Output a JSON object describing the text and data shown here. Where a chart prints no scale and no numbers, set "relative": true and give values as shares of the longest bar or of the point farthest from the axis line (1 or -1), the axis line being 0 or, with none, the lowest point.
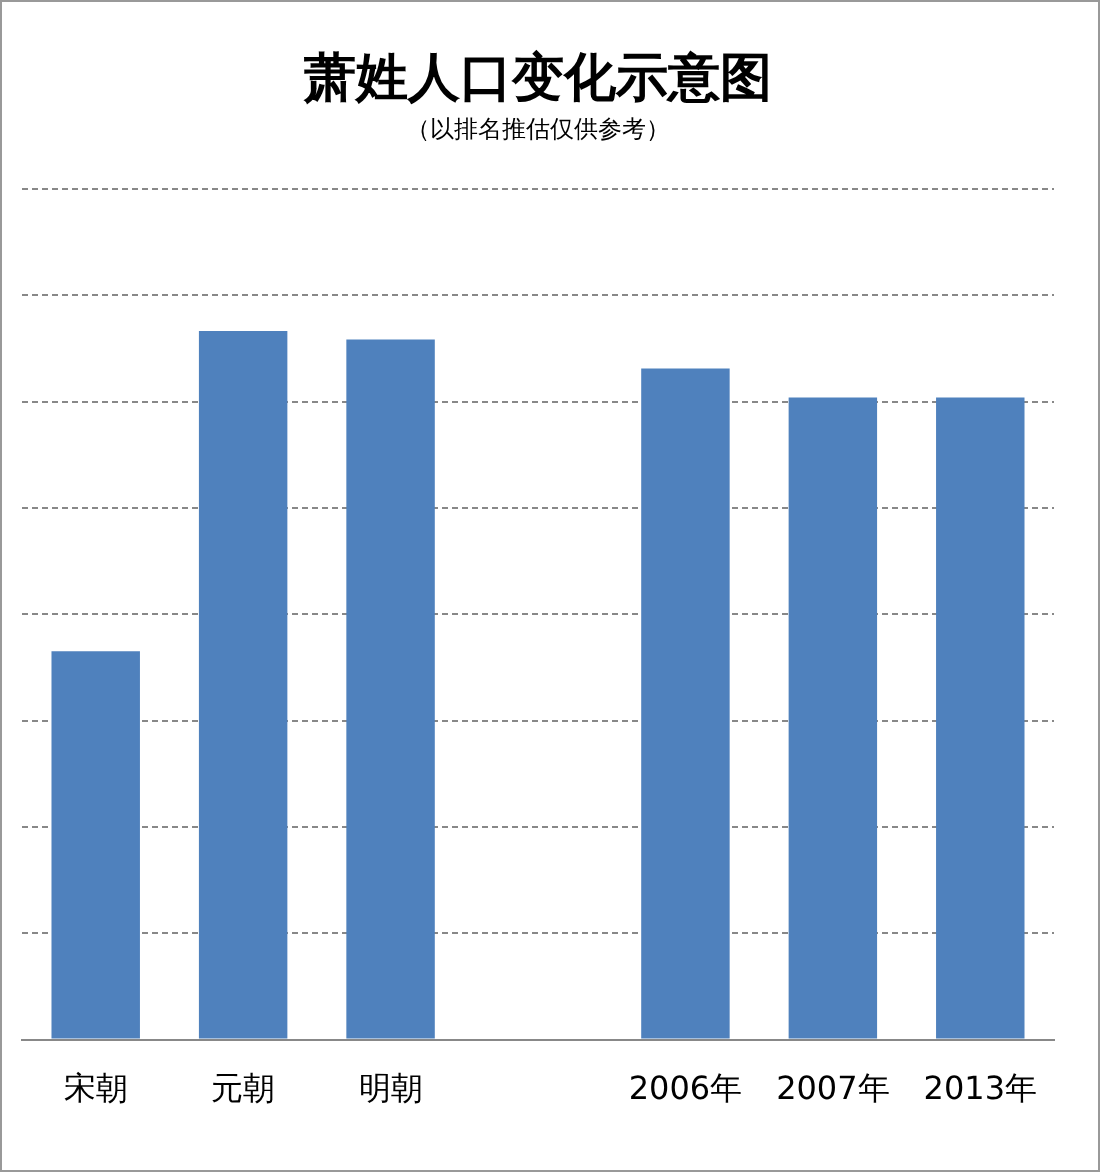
{
  "chart_data": {
    "type": "bar",
    "title": "萧姓人口变化示意图",
    "subtitle": "（以排名推估仅供参考）",
    "categories": [
      "宋朝",
      "元朝",
      "明朝",
      null,
      "2006年",
      "2007年",
      "2013年"
    ],
    "values": [
      0.548,
      1,
      0.988,
      null,
      0.947,
      0.906,
      0.906
    ],
    "color": "#4f81bd",
    "relative": true,
    "grid": "y"
  }
}
